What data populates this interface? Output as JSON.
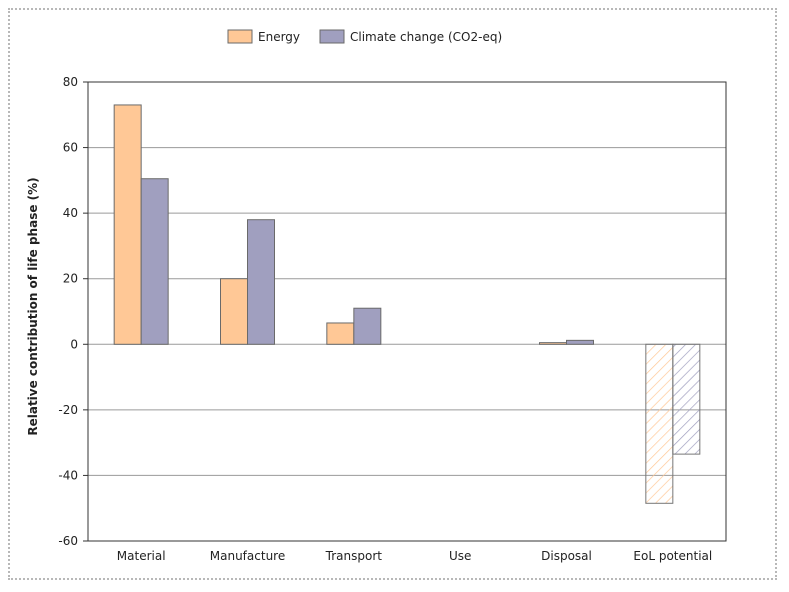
{
  "chart_data": {
    "type": "bar",
    "ylabel": "Relative contribution of life phase (%)",
    "ylim": [
      -60,
      80
    ],
    "yticks": [
      80,
      60,
      40,
      20,
      0,
      -20,
      -40,
      -60
    ],
    "grid": true,
    "legend_position": "top-center",
    "categories": [
      "Material",
      "Manufacture",
      "Transport",
      "Use",
      "Disposal",
      "EoL potential"
    ],
    "series": [
      {
        "name": "Energy",
        "color": "#ffc896",
        "values": [
          73,
          20,
          6.5,
          0,
          0.5,
          -48.5
        ]
      },
      {
        "name": "Climate change (CO2-eq)",
        "color": "#a09fbf",
        "values": [
          50.5,
          38,
          11,
          0,
          1.2,
          -33.5
        ]
      }
    ],
    "hatched_categories": [
      "EoL potential"
    ]
  }
}
